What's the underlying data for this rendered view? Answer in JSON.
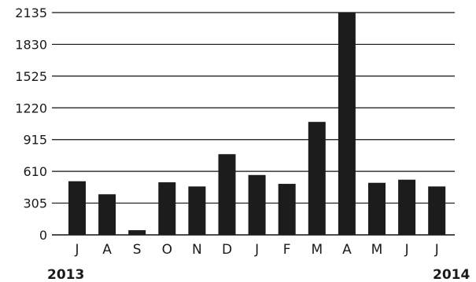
{
  "chart_data": {
    "type": "bar",
    "title": "",
    "xlabel": "",
    "ylabel": "",
    "categories": [
      "J",
      "A",
      "S",
      "O",
      "N",
      "D",
      "J",
      "F",
      "M",
      "A",
      "M",
      "J",
      "J"
    ],
    "values": [
      515,
      390,
      45,
      505,
      465,
      775,
      575,
      490,
      1085,
      2135,
      500,
      530,
      465
    ],
    "yticks": [
      "0",
      "305",
      "610",
      "915",
      "1220",
      "1525",
      "1830",
      "2135"
    ],
    "ylim": [
      0,
      2135
    ],
    "grid": true,
    "year_start": "2013",
    "year_end": "2014",
    "colors": {
      "bar": "#1c1c1c",
      "grid": "#111111"
    }
  }
}
